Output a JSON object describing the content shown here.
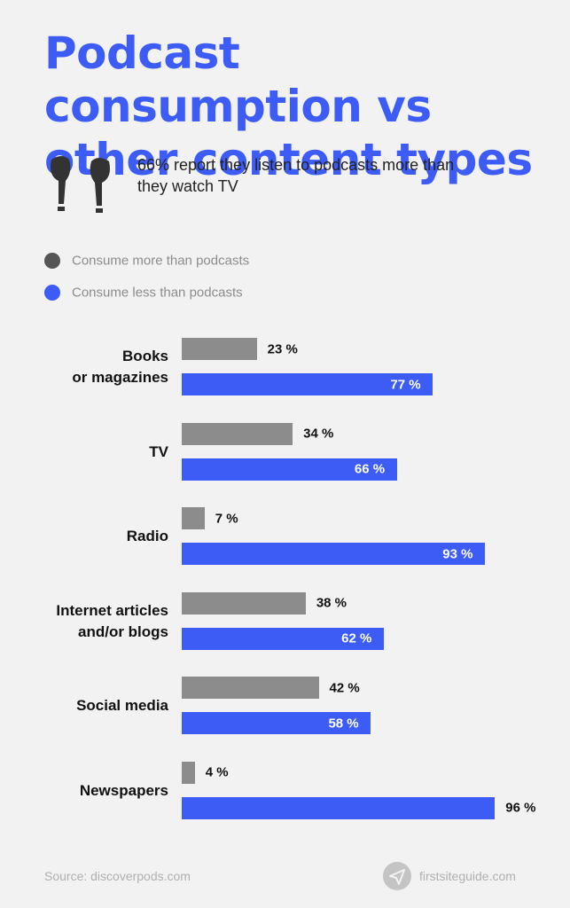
{
  "chart_data": {
    "type": "bar",
    "title": "Podcast consumption vs other content types",
    "subtitle": "66% report they listen to podcasts more than they watch TV",
    "categories": [
      "Books\nor magazines",
      "TV",
      "Radio",
      "Internet articles\nand/or blogs",
      "Social media",
      "Newspapers"
    ],
    "series": [
      {
        "name": "Consume more than podcasts",
        "color": "#8c8c8c",
        "legend_color": "#555555",
        "values": [
          23,
          34,
          7,
          38,
          42,
          4
        ],
        "value_labels": [
          "23 %",
          "34 %",
          "7 %",
          "38 %",
          "42 %",
          "4 %"
        ]
      },
      {
        "name": "Consume less than podcasts",
        "color": "#3d5cf5",
        "legend_color": "#3d5cf5",
        "values": [
          77,
          66,
          93,
          62,
          58,
          96
        ],
        "value_labels": [
          "77 %",
          "66 %",
          "93 %",
          "62 %",
          "58 %",
          "96 %"
        ]
      }
    ],
    "source": "Source: discoverpods.com",
    "brand": "firstsiteguide.com"
  }
}
